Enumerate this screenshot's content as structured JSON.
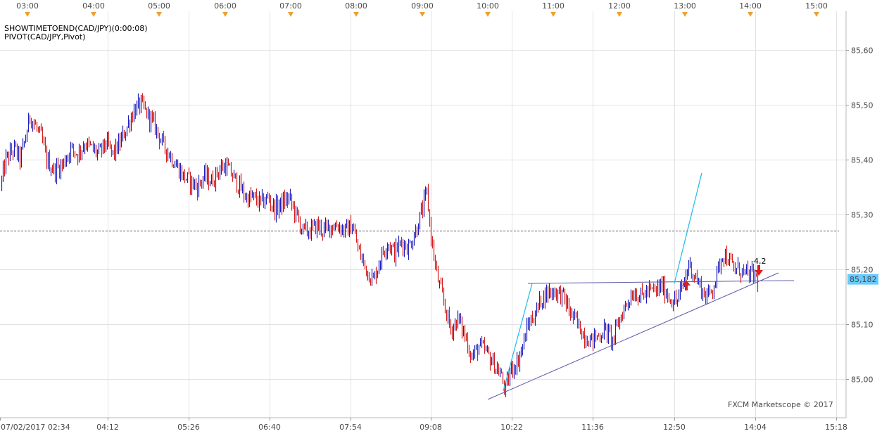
{
  "indicators": [
    "SHOWTIMETOEND(CAD/JPY)(0:00:08)",
    "PIVOT(CAD/JPY,Pivot)"
  ],
  "top_time_labels": [
    "03:00",
    "04:00",
    "05:00",
    "06:00",
    "07:00",
    "08:00",
    "09:00",
    "10:00",
    "11:00",
    "12:00",
    "13:00",
    "14:00",
    "15:00"
  ],
  "bottom_time_labels": [
    "07/02/2017 02:34",
    "04:12",
    "05:26",
    "06:40",
    "07:54",
    "09:08",
    "10:22",
    "11:36",
    "12:50",
    "14:04",
    "15:18"
  ],
  "price_labels": [
    "85,60",
    "85,50",
    "85,40",
    "85,30",
    "85,20",
    "85,10",
    "85,00"
  ],
  "watermark": "FXCM Marketscope © 2017",
  "colors": {
    "background": "#ffffff",
    "grid": "#e2e2e2",
    "bar_up": "#1f1fbf",
    "bar_down": "#d42020",
    "trendline": "#5a5aa8",
    "projection": "#1ebbe8",
    "current_price_bg": "#66ccff",
    "top_marker": "#f0a030",
    "signal_arrow": "#d42020"
  },
  "chart_data": {
    "type": "ohlc",
    "symbol": "CAD/JPY",
    "ylim": [
      84.93,
      85.67
    ],
    "yticks": [
      85.6,
      85.5,
      85.4,
      85.3,
      85.2,
      85.1,
      85.0
    ],
    "current_price": 85.182,
    "current_price_label": "85,182",
    "pivot_level": 85.27,
    "annotation": "-4,2",
    "price_path": [
      [
        0,
        85.35
      ],
      [
        8,
        85.4
      ],
      [
        20,
        85.42
      ],
      [
        28,
        85.4
      ],
      [
        36,
        85.44
      ],
      [
        42,
        85.48
      ],
      [
        50,
        85.46
      ],
      [
        58,
        85.44
      ],
      [
        66,
        85.4
      ],
      [
        76,
        85.38
      ],
      [
        88,
        85.39
      ],
      [
        100,
        85.42
      ],
      [
        110,
        85.41
      ],
      [
        120,
        85.43
      ],
      [
        130,
        85.42
      ],
      [
        140,
        85.41
      ],
      [
        150,
        85.43
      ],
      [
        160,
        85.41
      ],
      [
        170,
        85.43
      ],
      [
        180,
        85.46
      ],
      [
        190,
        85.49
      ],
      [
        200,
        85.5
      ],
      [
        210,
        85.48
      ],
      [
        220,
        85.46
      ],
      [
        230,
        85.43
      ],
      [
        240,
        85.41
      ],
      [
        250,
        85.39
      ],
      [
        260,
        85.37
      ],
      [
        270,
        85.36
      ],
      [
        280,
        85.35
      ],
      [
        290,
        85.37
      ],
      [
        300,
        85.36
      ],
      [
        310,
        85.38
      ],
      [
        320,
        85.39
      ],
      [
        330,
        85.37
      ],
      [
        340,
        85.35
      ],
      [
        350,
        85.33
      ],
      [
        360,
        85.33
      ],
      [
        370,
        85.32
      ],
      [
        380,
        85.33
      ],
      [
        390,
        85.31
      ],
      [
        400,
        85.32
      ],
      [
        410,
        85.33
      ],
      [
        420,
        85.3
      ],
      [
        430,
        85.27
      ],
      [
        440,
        85.27
      ],
      [
        450,
        85.28
      ],
      [
        460,
        85.27
      ],
      [
        470,
        85.28
      ],
      [
        480,
        85.28
      ],
      [
        490,
        85.27
      ],
      [
        500,
        85.28
      ],
      [
        510,
        85.23
      ],
      [
        520,
        85.2
      ],
      [
        530,
        85.18
      ],
      [
        540,
        85.22
      ],
      [
        550,
        85.25
      ],
      [
        560,
        85.23
      ],
      [
        570,
        85.25
      ],
      [
        580,
        85.24
      ],
      [
        590,
        85.27
      ],
      [
        600,
        85.31
      ],
      [
        606,
        85.34
      ],
      [
        612,
        85.26
      ],
      [
        620,
        85.19
      ],
      [
        630,
        85.14
      ],
      [
        640,
        85.09
      ],
      [
        650,
        85.11
      ],
      [
        660,
        85.08
      ],
      [
        670,
        85.04
      ],
      [
        680,
        85.06
      ],
      [
        690,
        85.05
      ],
      [
        700,
        85.03
      ],
      [
        710,
        85.01
      ],
      [
        718,
        84.98
      ],
      [
        726,
        85.02
      ],
      [
        734,
        85.03
      ],
      [
        742,
        85.06
      ],
      [
        750,
        85.1
      ],
      [
        760,
        85.12
      ],
      [
        770,
        85.15
      ],
      [
        780,
        85.16
      ],
      [
        790,
        85.16
      ],
      [
        800,
        85.15
      ],
      [
        810,
        85.12
      ],
      [
        820,
        85.1
      ],
      [
        830,
        85.08
      ],
      [
        840,
        85.07
      ],
      [
        850,
        85.08
      ],
      [
        860,
        85.09
      ],
      [
        870,
        85.07
      ],
      [
        880,
        85.11
      ],
      [
        890,
        85.14
      ],
      [
        900,
        85.16
      ],
      [
        910,
        85.15
      ],
      [
        920,
        85.16
      ],
      [
        930,
        85.16
      ],
      [
        940,
        85.17
      ],
      [
        950,
        85.15
      ],
      [
        960,
        85.14
      ],
      [
        970,
        85.17
      ],
      [
        978,
        85.21
      ],
      [
        986,
        85.19
      ],
      [
        994,
        85.17
      ],
      [
        1002,
        85.15
      ],
      [
        1010,
        85.16
      ],
      [
        1018,
        85.19
      ],
      [
        1026,
        85.23
      ],
      [
        1034,
        85.22
      ],
      [
        1042,
        85.2
      ],
      [
        1050,
        85.2
      ],
      [
        1060,
        85.19
      ],
      [
        1070,
        85.19
      ],
      [
        1076,
        85.182
      ]
    ]
  }
}
